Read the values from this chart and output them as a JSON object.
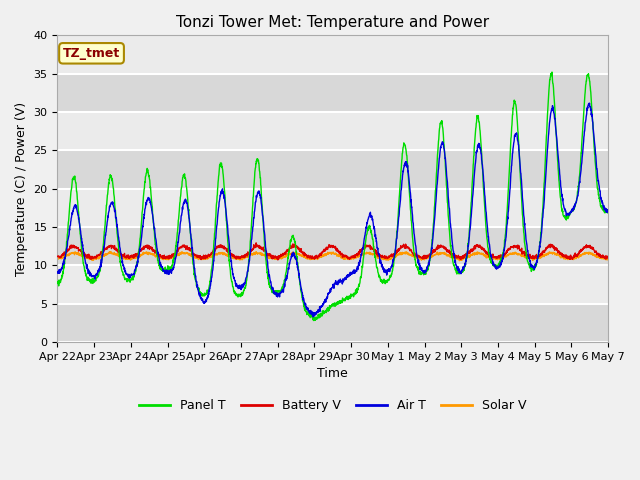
{
  "title": "Tonzi Tower Met: Temperature and Power",
  "xlabel": "Time",
  "ylabel": "Temperature (C) / Power (V)",
  "annotation": "TZ_tmet",
  "ylim": [
    0,
    40
  ],
  "x_tick_labels": [
    "Apr 22",
    "Apr 23",
    "Apr 24",
    "Apr 25",
    "Apr 26",
    "Apr 27",
    "Apr 28",
    "Apr 29",
    "Apr 30",
    "May 1",
    "May 2",
    "May 3",
    "May 4",
    "May 5",
    "May 6",
    "May 7"
  ],
  "colors": {
    "panel_t": "#00dd00",
    "battery_v": "#dd0000",
    "air_t": "#0000dd",
    "solar_v": "#ff9900"
  },
  "legend_labels": [
    "Panel T",
    "Battery V",
    "Air T",
    "Solar V"
  ],
  "bg_color": "#ebebeb",
  "title_fontsize": 11,
  "axis_fontsize": 9,
  "tick_fontsize": 8
}
